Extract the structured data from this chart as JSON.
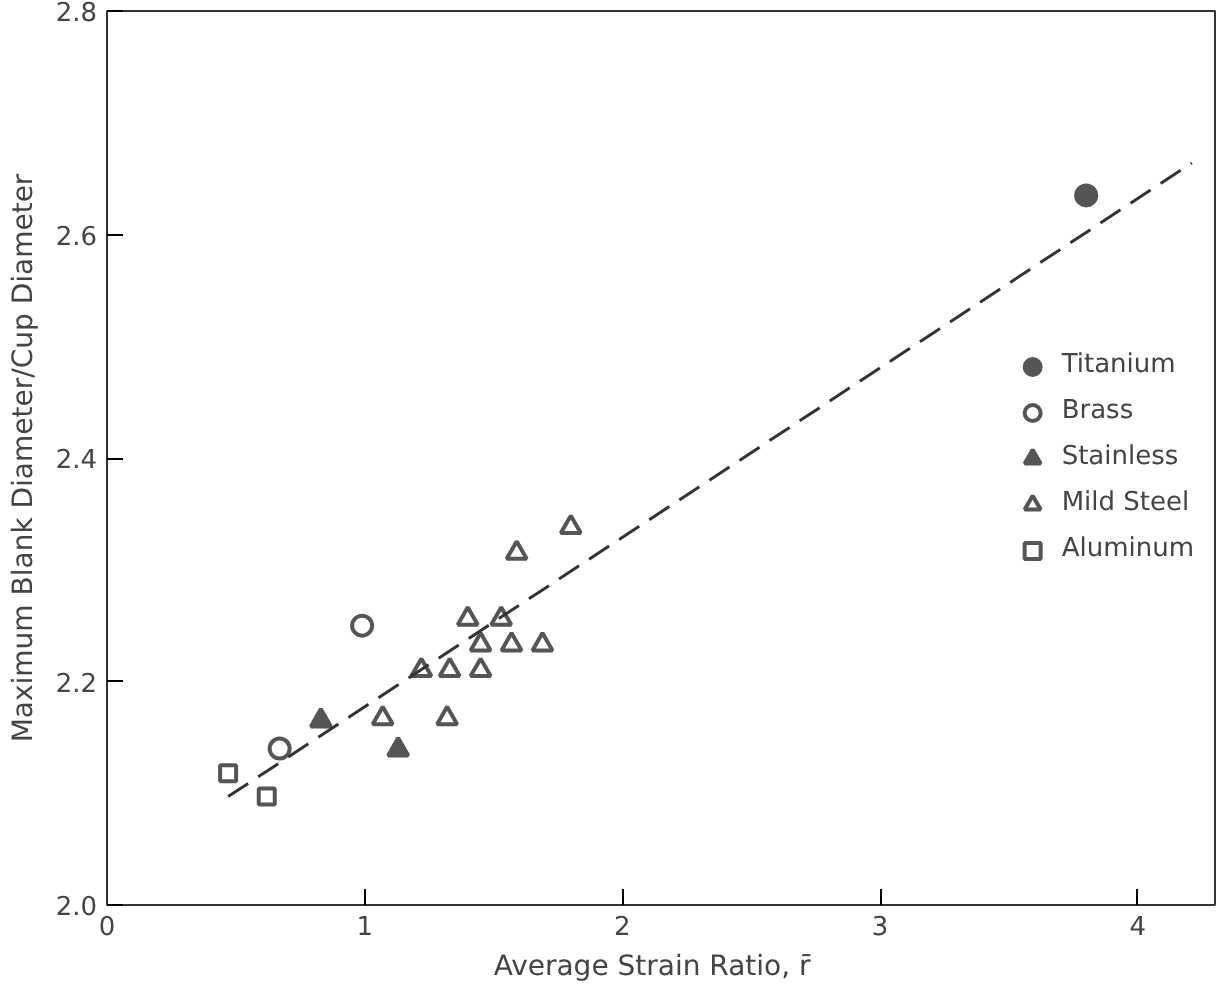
{
  "chart_data": {
    "type": "scatter",
    "xlabel": "Average  Strain  Ratio, r̄",
    "ylabel": "Maximum Blank Diameter/Cup Diameter",
    "xlim": [
      0,
      4.3
    ],
    "ylim": [
      2.0,
      2.8
    ],
    "xticks": [
      0,
      1,
      2,
      3,
      4
    ],
    "yticks": [
      {
        "value": 2.0,
        "label": "2.0"
      },
      2.2,
      2.4,
      2.6,
      2.8
    ],
    "grid": false,
    "legend": "right",
    "series": [
      {
        "name": "Titanium",
        "color": "#555555",
        "marker": "circle",
        "x": [
          3.8
        ],
        "values": [
          2.635
        ]
      },
      {
        "name": "Brass",
        "color": "#ffffff",
        "marker": "circle",
        "x": [
          0.99,
          0.67
        ],
        "values": [
          2.25,
          2.14
        ]
      },
      {
        "name": "Stainless",
        "color": "#555555",
        "marker": "triangle",
        "x": [
          0.83,
          1.13
        ],
        "values": [
          2.165,
          2.139
        ]
      },
      {
        "name": "Mild Steel",
        "color": "#ffffff",
        "marker": "triangle",
        "x": [
          1.07,
          1.32,
          1.22,
          1.33,
          1.45,
          1.45,
          1.57,
          1.69,
          1.4,
          1.53,
          1.59,
          1.8
        ],
        "values": [
          2.167,
          2.167,
          2.21,
          2.21,
          2.21,
          2.233,
          2.233,
          2.233,
          2.256,
          2.256,
          2.315,
          2.338
        ]
      },
      {
        "name": "Aluminum",
        "color": "#ffffff",
        "marker": "square",
        "x": [
          0.47,
          0.62
        ],
        "values": [
          2.118,
          2.097
        ]
      },
      {
        "type": "line",
        "color": "#333333",
        "line_style": "dashed",
        "x": [
          0.47,
          4.21
        ],
        "values": [
          2.097,
          2.664
        ]
      }
    ]
  }
}
